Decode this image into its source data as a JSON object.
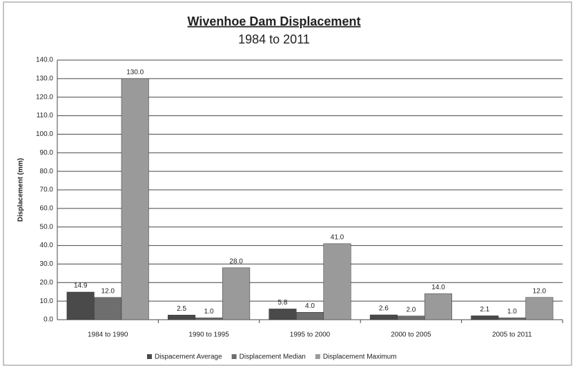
{
  "chart_data": {
    "type": "bar",
    "title": "Wivenhoe Dam Displacement",
    "subtitle": "1984 to 2011",
    "y_label": "Displacement (mm)",
    "categories": [
      "1984 to 1990",
      "1990 to 1995",
      "1995 to 2000",
      "2000 to 2005",
      "2005 to 2011"
    ],
    "series": [
      {
        "name": "Dispacement Average",
        "color": "#4a4a4a",
        "values": [
          14.9,
          2.5,
          5.8,
          2.6,
          2.1
        ],
        "value_labels": [
          "14.9",
          "2.5",
          "5.8",
          "2.6",
          "2.1"
        ]
      },
      {
        "name": "Displacement Median",
        "color": "#6e6e6e",
        "values": [
          12.0,
          1.0,
          4.0,
          2.0,
          1.0
        ],
        "value_labels": [
          "12.0",
          "1.0",
          "4.0",
          "2.0",
          "1.0"
        ]
      },
      {
        "name": "Displacement Maximum",
        "color": "#9a9a9a",
        "values": [
          130.0,
          28.0,
          41.0,
          14.0,
          12.0
        ],
        "value_labels": [
          "130.0",
          "28.0",
          "41.0",
          "14.0",
          "12.0"
        ]
      }
    ],
    "ylim": [
      0,
      140
    ],
    "yticks": [
      {
        "value": 0,
        "label": "0.0"
      },
      {
        "value": 10,
        "label": "10.0"
      },
      {
        "value": 20,
        "label": "20.0"
      },
      {
        "value": 30,
        "label": "30.0"
      },
      {
        "value": 40,
        "label": "40.0"
      },
      {
        "value": 50,
        "label": "50.0"
      },
      {
        "value": 60,
        "label": "60.0"
      },
      {
        "value": 70,
        "label": "70.0"
      },
      {
        "value": 80,
        "label": "80.0"
      },
      {
        "value": 90,
        "label": "90.0"
      },
      {
        "value": 100,
        "label": "100.0"
      },
      {
        "value": 110,
        "label": "110.0"
      },
      {
        "value": 120,
        "label": "120.0"
      },
      {
        "value": 130,
        "label": "130.0"
      },
      {
        "value": 140,
        "label": "140.0"
      }
    ],
    "grid": true,
    "legend": "bottom"
  }
}
